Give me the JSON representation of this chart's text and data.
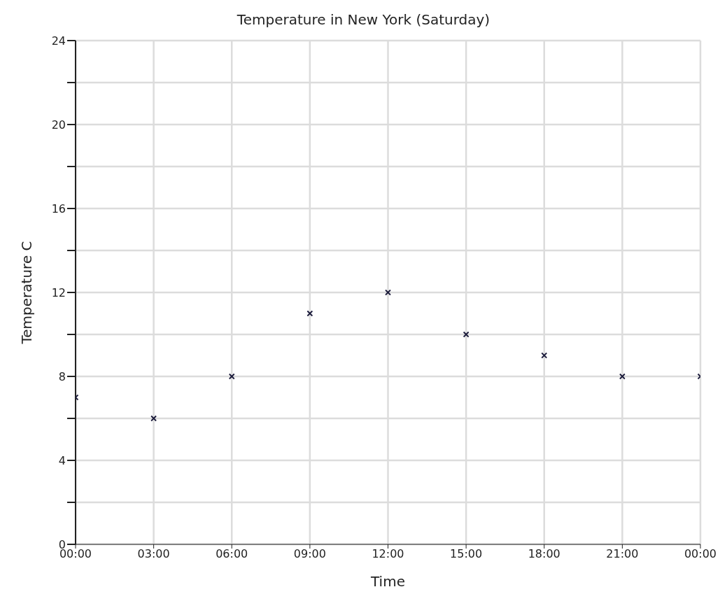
{
  "chart_data": {
    "type": "scatter",
    "title": "Temperature in New York (Saturday)",
    "xlabel": "Time",
    "ylabel": "Temperature C",
    "x": [
      0,
      3,
      6,
      9,
      12,
      15,
      18,
      21,
      24
    ],
    "series": [
      {
        "color": "#1a1a3a",
        "values": [
          7,
          6,
          8,
          11,
          12,
          10,
          9,
          8,
          8
        ]
      }
    ],
    "xlim": [
      0,
      24
    ],
    "xticks": [
      {
        "value": 0,
        "label": "00:00"
      },
      {
        "value": 3,
        "label": "03:00"
      },
      {
        "value": 6,
        "label": "06:00"
      },
      {
        "value": 9,
        "label": "09:00"
      },
      {
        "value": 12,
        "label": "12:00"
      },
      {
        "value": 15,
        "label": "15:00"
      },
      {
        "value": 18,
        "label": "18:00"
      },
      {
        "value": 21,
        "label": "21:00"
      },
      {
        "value": 24,
        "label": "00:00"
      }
    ],
    "ylim": [
      0,
      24
    ],
    "yticks": [
      0,
      {
        "value": 2,
        "label": null
      },
      4,
      {
        "value": 6,
        "label": null
      },
      8,
      {
        "value": 10,
        "label": null
      },
      12,
      {
        "value": 14,
        "label": null
      },
      16,
      {
        "value": 18,
        "label": null
      },
      20,
      {
        "value": 22,
        "label": null
      },
      24
    ],
    "grid": true,
    "marker": "cross"
  }
}
